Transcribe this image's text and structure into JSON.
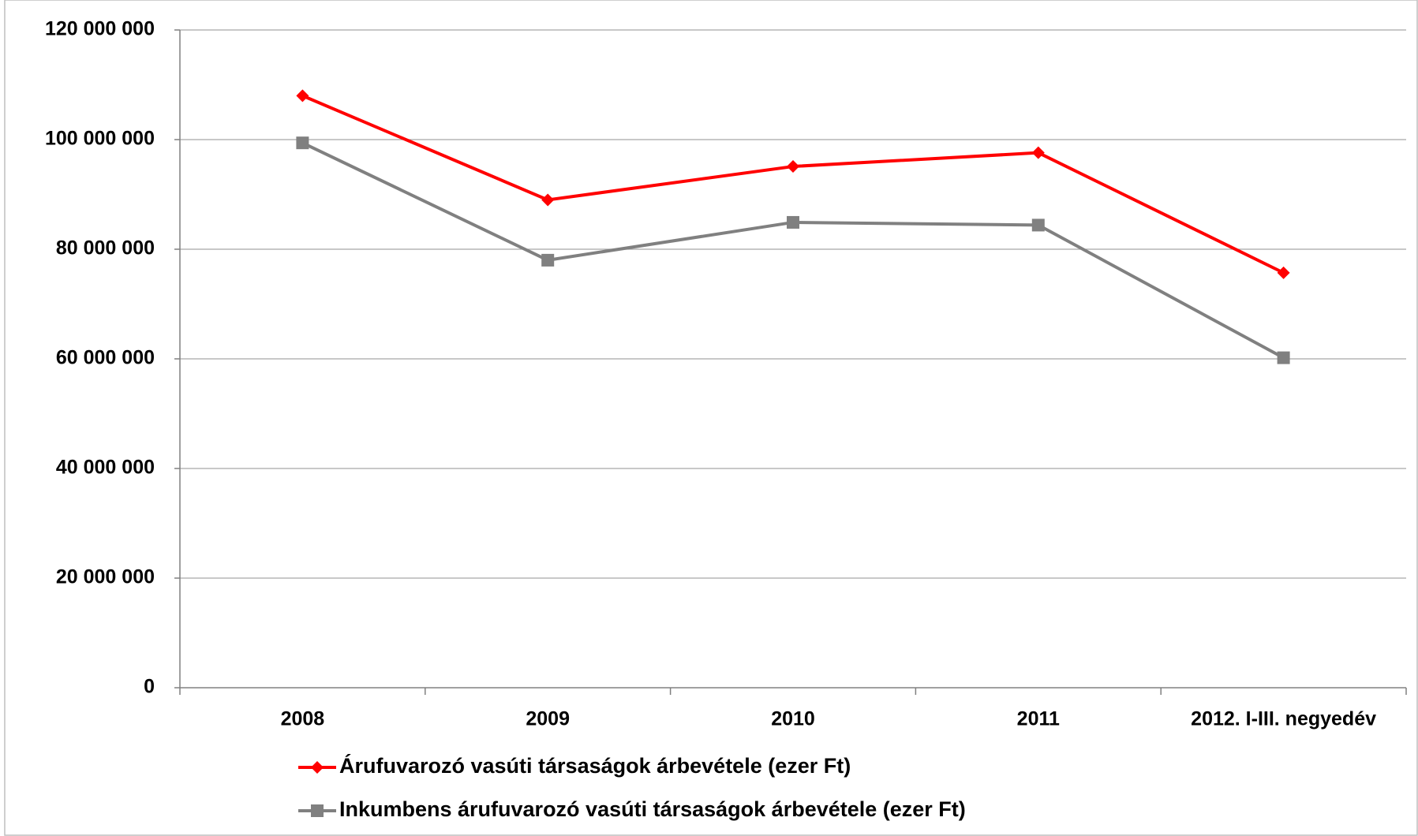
{
  "chart_data": {
    "type": "line",
    "categories": [
      "2008",
      "2009",
      "2010",
      "2011",
      "2012. I-III. negyedév"
    ],
    "series": [
      {
        "name": "Árufuvarozó vasúti társaságok árbevétele (ezer Ft)",
        "color": "#ff0000",
        "marker": "diamond",
        "values": [
          108000000,
          89000000,
          95100000,
          97600000,
          75700000
        ]
      },
      {
        "name": "Inkumbens árufuvarozó vasúti társaságok árbevétele (ezer Ft)",
        "color": "#808080",
        "marker": "square",
        "values": [
          99400000,
          78000000,
          84900000,
          84400000,
          60200000
        ]
      }
    ],
    "ylim": [
      0,
      120000000
    ],
    "yticks": [
      0,
      {
        "value": 20000000,
        "label": "20 000 000"
      },
      {
        "value": 40000000,
        "label": "40 000 000"
      },
      {
        "value": 60000000,
        "label": "60 000 000"
      },
      {
        "value": 80000000,
        "label": "80 000 000"
      },
      {
        "value": 100000000,
        "label": "100 000 000"
      },
      {
        "value": 120000000,
        "label": "120 000 000"
      }
    ],
    "grid": true,
    "legend": "bottom"
  }
}
